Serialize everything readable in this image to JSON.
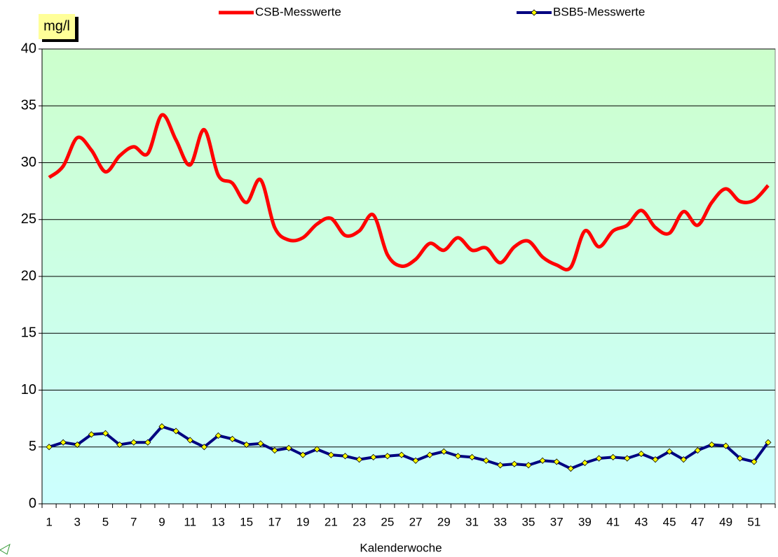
{
  "chart_data": {
    "type": "line",
    "y_label": "mg/l",
    "x_label": "Kalenderwoche",
    "categories": [
      "1",
      null,
      "3",
      null,
      "5",
      null,
      "7",
      null,
      "9",
      null,
      "11",
      null,
      "13",
      null,
      "15",
      null,
      "17",
      null,
      "19",
      null,
      "21",
      null,
      "23",
      null,
      "25",
      null,
      "27",
      null,
      "29",
      null,
      "31",
      null,
      "33",
      null,
      "35",
      null,
      "37",
      null,
      "39",
      null,
      "41",
      null,
      "43",
      null,
      "45",
      null,
      "47",
      null,
      "49",
      null,
      "51",
      null
    ],
    "series": [
      {
        "name": "CSB-Messwerte",
        "color": "#ff0000",
        "smooth": true,
        "values": [
          28.7,
          29.7,
          32.2,
          31.1,
          29.2,
          30.6,
          31.4,
          30.8,
          34.2,
          32.0,
          29.8,
          32.9,
          28.9,
          28.2,
          26.5,
          28.5,
          24.3,
          23.2,
          23.4,
          24.6,
          25.1,
          23.6,
          24.0,
          25.4,
          21.9,
          20.9,
          21.5,
          22.9,
          22.3,
          23.4,
          22.3,
          22.5,
          21.2,
          22.6,
          23.1,
          21.7,
          21.0,
          20.8,
          24.0,
          22.6,
          24.0,
          24.5,
          25.8,
          24.3,
          23.8,
          25.7,
          24.5,
          26.5,
          27.7,
          26.6,
          26.7,
          28.0
        ]
      },
      {
        "name": "BSB5-Messwerte",
        "color": "#000080",
        "marker_color": "#ffff00",
        "values": [
          5.0,
          5.4,
          5.2,
          6.1,
          6.2,
          5.2,
          5.4,
          5.4,
          6.8,
          6.4,
          5.6,
          5.0,
          6.0,
          5.7,
          5.2,
          5.3,
          4.7,
          4.9,
          4.3,
          4.8,
          4.3,
          4.2,
          3.9,
          4.1,
          4.2,
          4.3,
          3.8,
          4.3,
          4.6,
          4.2,
          4.1,
          3.8,
          3.4,
          3.5,
          3.4,
          3.8,
          3.7,
          3.1,
          3.6,
          4.0,
          4.1,
          4.0,
          4.4,
          3.9,
          4.6,
          3.9,
          4.7,
          5.2,
          5.1,
          4.0,
          3.7,
          5.4
        ]
      }
    ],
    "ylim": [
      0,
      40
    ],
    "yticks": [
      0,
      5,
      10,
      15,
      20,
      25,
      30,
      35,
      40
    ],
    "grid": true,
    "legend": "top"
  }
}
